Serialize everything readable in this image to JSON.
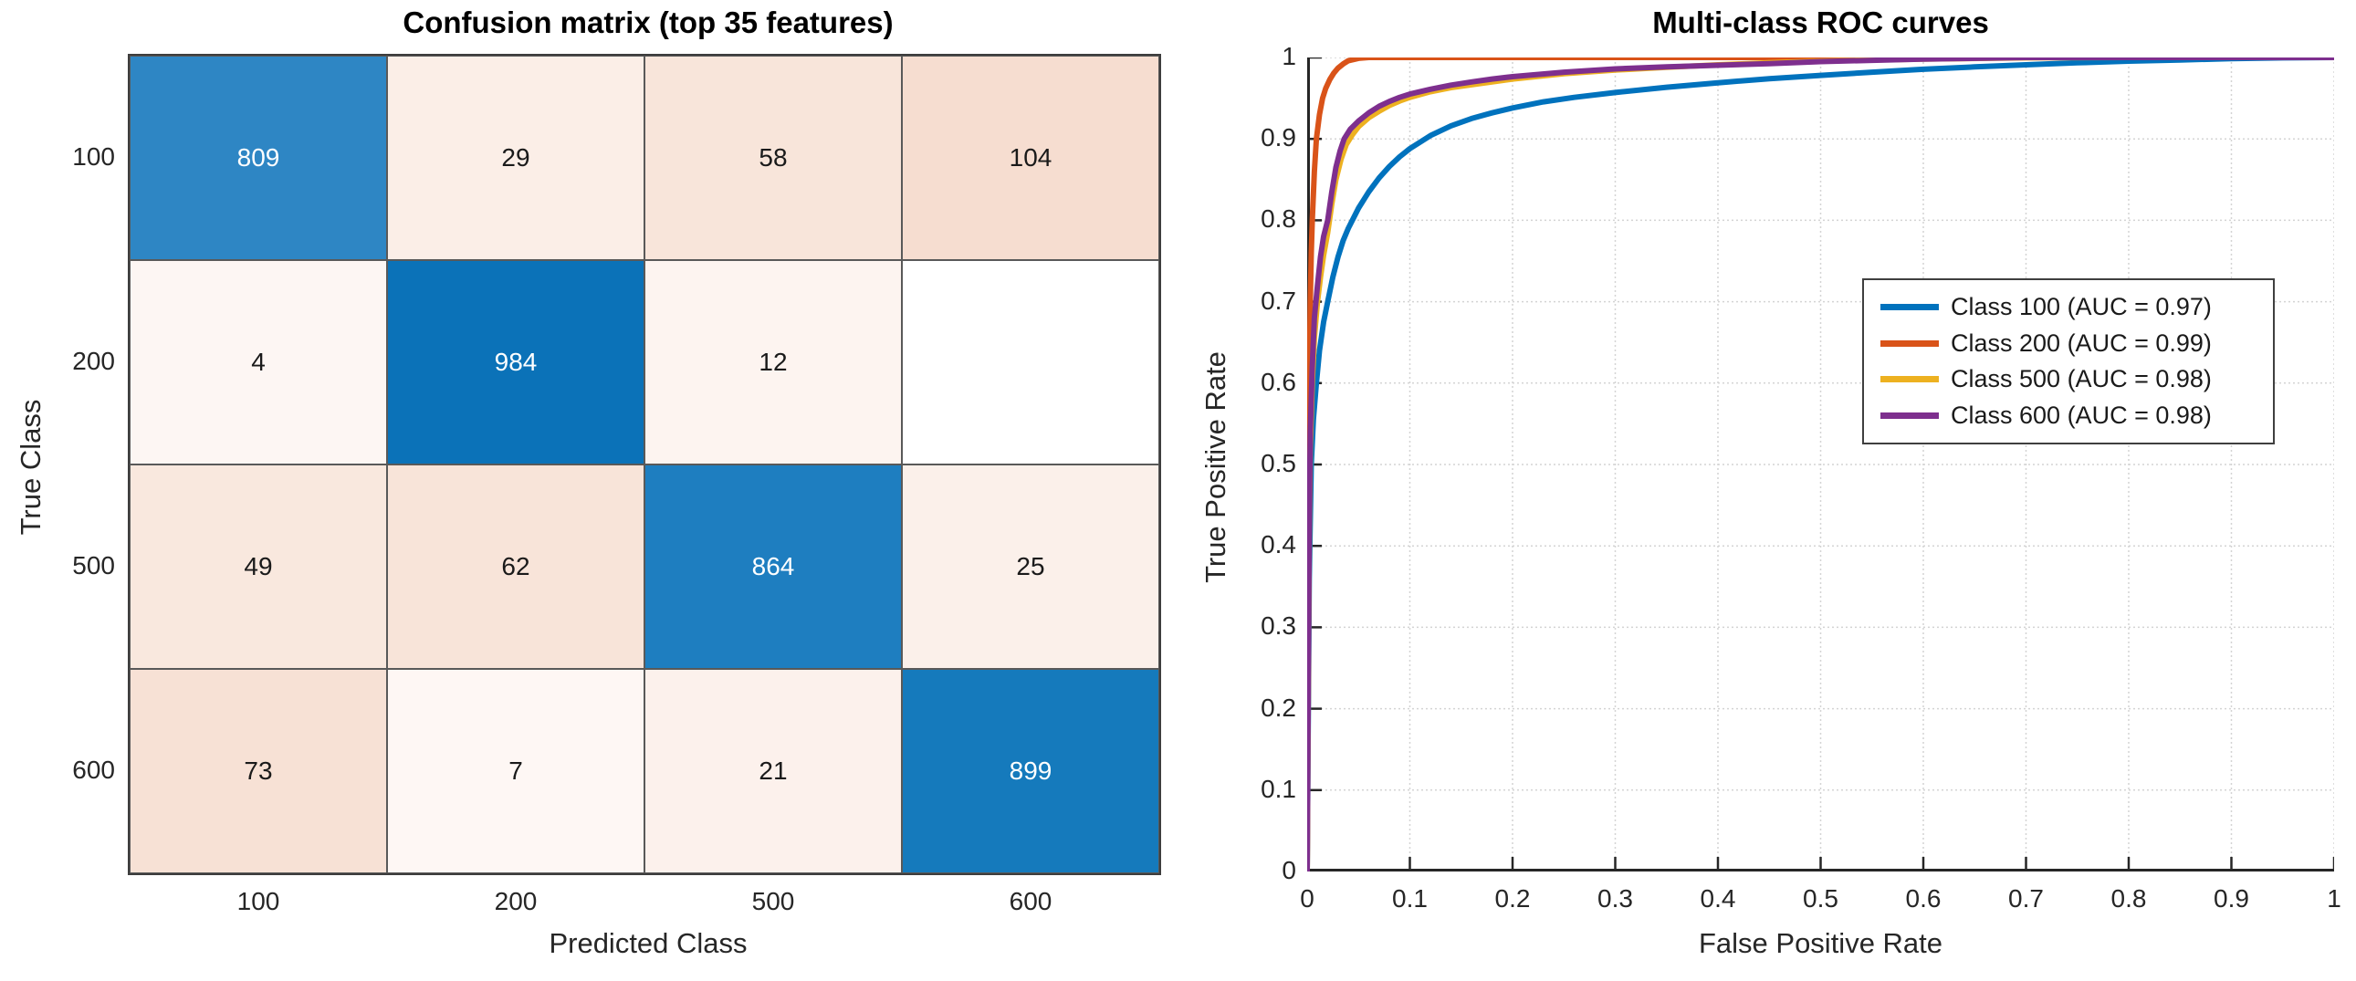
{
  "chart_data": [
    {
      "type": "heatmap",
      "title": "Confusion matrix (top 35 features)",
      "xlabel": "Predicted Class",
      "ylabel": "True Class",
      "categories": [
        "100",
        "200",
        "500",
        "600"
      ],
      "values": [
        [
          809,
          29,
          58,
          104
        ],
        [
          4,
          984,
          12,
          null
        ],
        [
          49,
          62,
          864,
          25
        ],
        [
          73,
          7,
          21,
          899
        ]
      ],
      "cell_colors": [
        [
          "#2e86c4",
          "#fbeee7",
          "#f8e5da",
          "#f6ddd0"
        ],
        [
          "#fdf6f3",
          "#0b72b8",
          "#fdf4f0",
          "#ffffff"
        ],
        [
          "#f9e8de",
          "#f8e4d9",
          "#1e7ec0",
          "#fbf0ea"
        ],
        [
          "#f7e1d5",
          "#fef7f4",
          "#fcf1ec",
          "#157abc"
        ]
      ],
      "diag_text_color": "#ffffff",
      "offdiag_text_color": "#1a1a1a",
      "grid_line_color": "#595959"
    },
    {
      "type": "line",
      "title": "Multi-class ROC curves",
      "xlabel": "False Positive Rate",
      "ylabel": "True Positive Rate",
      "xlim": [
        0,
        1
      ],
      "ylim": [
        0,
        1
      ],
      "grid": true,
      "legend_position": "middle-right",
      "xticks": [
        "0",
        "0.1",
        "0.2",
        "0.3",
        "0.4",
        "0.5",
        "0.6",
        "0.7",
        "0.8",
        "0.9",
        "1"
      ],
      "yticks": [
        "0",
        "0.1",
        "0.2",
        "0.3",
        "0.4",
        "0.5",
        "0.6",
        "0.7",
        "0.8",
        "0.9",
        "1"
      ],
      "series": [
        {
          "label": "Class 100 (AUC = 0.97)",
          "auc": 0.97,
          "color": "#0072BD",
          "points": [
            [
              0,
              0
            ],
            [
              0.002,
              0.36
            ],
            [
              0.004,
              0.5
            ],
            [
              0.006,
              0.555
            ],
            [
              0.009,
              0.6
            ],
            [
              0.012,
              0.64
            ],
            [
              0.016,
              0.675
            ],
            [
              0.02,
              0.7
            ],
            [
              0.025,
              0.73
            ],
            [
              0.03,
              0.755
            ],
            [
              0.035,
              0.775
            ],
            [
              0.04,
              0.79
            ],
            [
              0.05,
              0.815
            ],
            [
              0.06,
              0.835
            ],
            [
              0.07,
              0.852
            ],
            [
              0.08,
              0.866
            ],
            [
              0.09,
              0.878
            ],
            [
              0.1,
              0.888
            ],
            [
              0.12,
              0.904
            ],
            [
              0.14,
              0.916
            ],
            [
              0.16,
              0.925
            ],
            [
              0.18,
              0.932
            ],
            [
              0.2,
              0.938
            ],
            [
              0.23,
              0.9455
            ],
            [
              0.26,
              0.951
            ],
            [
              0.3,
              0.957
            ],
            [
              0.35,
              0.9635
            ],
            [
              0.4,
              0.969
            ],
            [
              0.45,
              0.974
            ],
            [
              0.5,
              0.978
            ],
            [
              0.55,
              0.982
            ],
            [
              0.6,
              0.9855
            ],
            [
              0.65,
              0.9885
            ],
            [
              0.7,
              0.991
            ],
            [
              0.75,
              0.9935
            ],
            [
              0.8,
              0.9955
            ],
            [
              0.85,
              0.997
            ],
            [
              0.9,
              0.9985
            ],
            [
              0.95,
              0.9995
            ],
            [
              1,
              1
            ]
          ]
        },
        {
          "label": "Class 200 (AUC = 0.99)",
          "auc": 0.99,
          "color": "#D95319",
          "points": [
            [
              0,
              0
            ],
            [
              0.001,
              0.42
            ],
            [
              0.002,
              0.6
            ],
            [
              0.003,
              0.7
            ],
            [
              0.004,
              0.76
            ],
            [
              0.005,
              0.8
            ],
            [
              0.007,
              0.86
            ],
            [
              0.009,
              0.9
            ],
            [
              0.012,
              0.93
            ],
            [
              0.015,
              0.95
            ],
            [
              0.018,
              0.962
            ],
            [
              0.022,
              0.973
            ],
            [
              0.026,
              0.981
            ],
            [
              0.03,
              0.987
            ],
            [
              0.035,
              0.992
            ],
            [
              0.04,
              0.996
            ],
            [
              0.05,
              0.999
            ],
            [
              0.06,
              1.0
            ],
            [
              1,
              1
            ]
          ]
        },
        {
          "label": "Class 500 (AUC = 0.98)",
          "auc": 0.98,
          "color": "#EDB120",
          "points": [
            [
              0,
              0
            ],
            [
              0.002,
              0.42
            ],
            [
              0.003,
              0.52
            ],
            [
              0.005,
              0.6
            ],
            [
              0.007,
              0.655
            ],
            [
              0.01,
              0.7
            ],
            [
              0.013,
              0.73
            ],
            [
              0.016,
              0.757
            ],
            [
              0.02,
              0.785
            ],
            [
              0.024,
              0.82
            ],
            [
              0.028,
              0.85
            ],
            [
              0.033,
              0.875
            ],
            [
              0.038,
              0.893
            ],
            [
              0.044,
              0.905
            ],
            [
              0.05,
              0.915
            ],
            [
              0.06,
              0.926
            ],
            [
              0.07,
              0.934
            ],
            [
              0.08,
              0.941
            ],
            [
              0.09,
              0.9465
            ],
            [
              0.1,
              0.951
            ],
            [
              0.12,
              0.958
            ],
            [
              0.14,
              0.963
            ],
            [
              0.16,
              0.9665
            ],
            [
              0.18,
              0.97
            ],
            [
              0.2,
              0.9735
            ],
            [
              0.25,
              0.98
            ],
            [
              0.3,
              0.9845
            ],
            [
              0.35,
              0.988
            ],
            [
              0.4,
              0.991
            ],
            [
              0.45,
              0.9935
            ],
            [
              0.5,
              0.9955
            ],
            [
              0.55,
              0.997
            ],
            [
              0.6,
              0.998
            ],
            [
              0.7,
              0.9995
            ],
            [
              0.8,
              1.0
            ],
            [
              1,
              1
            ]
          ]
        },
        {
          "label": "Class 600 (AUC = 0.98)",
          "auc": 0.98,
          "color": "#7E2F8E",
          "points": [
            [
              0,
              0
            ],
            [
              0.002,
              0.44
            ],
            [
              0.003,
              0.54
            ],
            [
              0.005,
              0.62
            ],
            [
              0.007,
              0.68
            ],
            [
              0.01,
              0.72
            ],
            [
              0.013,
              0.755
            ],
            [
              0.016,
              0.78
            ],
            [
              0.02,
              0.8
            ],
            [
              0.024,
              0.835
            ],
            [
              0.028,
              0.865
            ],
            [
              0.032,
              0.885
            ],
            [
              0.036,
              0.9
            ],
            [
              0.042,
              0.912
            ],
            [
              0.05,
              0.922
            ],
            [
              0.06,
              0.932
            ],
            [
              0.07,
              0.94
            ],
            [
              0.08,
              0.946
            ],
            [
              0.09,
              0.951
            ],
            [
              0.1,
              0.955
            ],
            [
              0.12,
              0.961
            ],
            [
              0.14,
              0.966
            ],
            [
              0.16,
              0.97
            ],
            [
              0.18,
              0.9735
            ],
            [
              0.2,
              0.9765
            ],
            [
              0.25,
              0.982
            ],
            [
              0.3,
              0.986
            ],
            [
              0.35,
              0.9885
            ],
            [
              0.4,
              0.9905
            ],
            [
              0.45,
              0.9925
            ],
            [
              0.5,
              0.995
            ],
            [
              0.55,
              0.9965
            ],
            [
              0.6,
              0.998
            ],
            [
              0.7,
              1.0
            ],
            [
              1,
              1
            ]
          ]
        }
      ],
      "style": {
        "grid_color": "#d4d4d4",
        "spine_color": "#262626",
        "line_width": 6
      }
    }
  ]
}
